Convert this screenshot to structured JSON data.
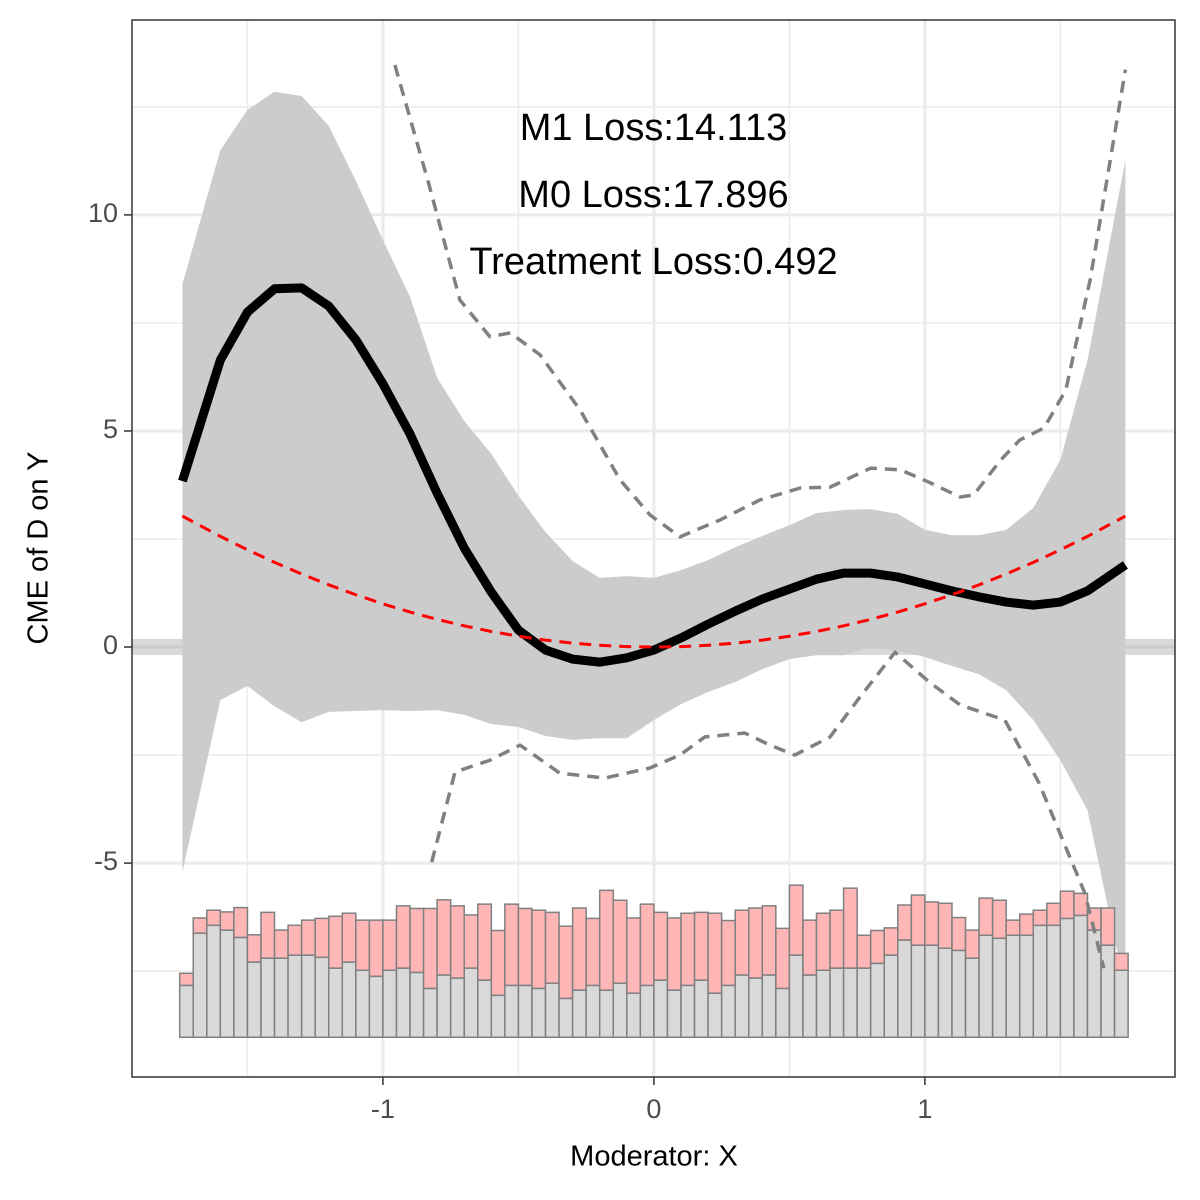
{
  "chart_data": {
    "type": "line",
    "x_label": "Moderator: X",
    "y_label": "CME of D on Y",
    "annotations": [
      "M1 Loss:14.113",
      "M0 Loss:17.896",
      "Treatment Loss:0.492"
    ],
    "xlim": [
      -1.926,
      1.923
    ],
    "ylim": [
      -9.95,
      14.51
    ],
    "xticks": [
      -1,
      0,
      1
    ],
    "yticks": [
      -5,
      0,
      5,
      10
    ],
    "grid": true,
    "minor_grid": true,
    "hline": 0,
    "x": [
      -1.74,
      -1.6,
      -1.5,
      -1.4,
      -1.3,
      -1.2,
      -1.1,
      -1.0,
      -0.9,
      -0.8,
      -0.7,
      -0.6,
      -0.5,
      -0.4,
      -0.3,
      -0.2,
      -0.1,
      0,
      0.1,
      0.2,
      0.3,
      0.4,
      0.5,
      0.6,
      0.7,
      0.8,
      0.9,
      1.0,
      1.1,
      1.2,
      1.3,
      1.4,
      1.5,
      1.6,
      1.74
    ],
    "band": {
      "color": "#cccccc",
      "upper": [
        8.4,
        11.5,
        12.43,
        12.85,
        12.75,
        12.06,
        10.79,
        9.42,
        8.1,
        6.23,
        5.23,
        4.47,
        3.5,
        2.66,
        1.99,
        1.6,
        1.64,
        1.6,
        1.78,
        2.01,
        2.31,
        2.57,
        2.82,
        3.1,
        3.17,
        3.19,
        3.08,
        2.71,
        2.59,
        2.59,
        2.71,
        3.22,
        4.33,
        6.64,
        11.27
      ],
      "lower": [
        -5.21,
        -1.23,
        -0.9,
        -1.37,
        -1.74,
        -1.5,
        -1.48,
        -1.46,
        -1.48,
        -1.46,
        -1.57,
        -1.78,
        -1.85,
        -2.06,
        -2.15,
        -2.11,
        -2.11,
        -1.69,
        -1.32,
        -1.04,
        -0.81,
        -0.51,
        -0.28,
        -0.19,
        -0.19,
        0.0,
        -0.09,
        -0.23,
        -0.44,
        -0.63,
        -1.0,
        -1.69,
        -2.62,
        -3.77,
        -7.94
      ]
    },
    "series": [
      {
        "color": "#000000",
        "dash": false,
        "values": [
          3.84,
          6.64,
          7.75,
          8.29,
          8.31,
          7.89,
          7.11,
          6.09,
          4.93,
          3.56,
          2.29,
          1.27,
          0.39,
          -0.07,
          -0.28,
          -0.35,
          -0.25,
          -0.07,
          0.21,
          0.53,
          0.83,
          1.11,
          1.34,
          1.57,
          1.71,
          1.71,
          1.62,
          1.46,
          1.3,
          1.16,
          1.04,
          0.97,
          1.04,
          1.3,
          1.9
        ]
      },
      {
        "color": "#ff0000",
        "dash": true,
        "values": [
          3.03,
          2.56,
          2.25,
          1.96,
          1.69,
          1.44,
          1.21,
          1.0,
          0.81,
          0.64,
          0.49,
          0.36,
          0.25,
          0.16,
          0.09,
          0.04,
          0.01,
          0,
          0.01,
          0.04,
          0.09,
          0.16,
          0.25,
          0.36,
          0.49,
          0.64,
          0.81,
          1.0,
          1.21,
          1.44,
          1.69,
          1.96,
          2.25,
          2.56,
          3.03
        ]
      },
      {
        "color": "#808080",
        "dash": true,
        "x": [
          -0.956,
          -0.83,
          -0.716,
          -0.605,
          -0.53,
          -0.42,
          -0.273,
          -0.125,
          -0.015,
          0.096,
          0.244,
          0.39,
          0.54,
          0.65,
          0.8,
          0.91,
          1.02,
          1.13,
          1.18,
          1.28,
          1.35,
          1.44,
          1.52,
          1.61,
          1.74
        ],
        "values": [
          13.47,
          10.7,
          8.03,
          7.18,
          7.27,
          6.76,
          5.49,
          3.87,
          3.06,
          2.55,
          2.94,
          3.4,
          3.68,
          3.7,
          4.14,
          4.1,
          3.8,
          3.47,
          3.52,
          4.33,
          4.79,
          5.07,
          5.95,
          8.5,
          13.36
        ]
      },
      {
        "color": "#808080",
        "dash": true,
        "x": [
          -0.82,
          -0.734,
          -0.605,
          -0.494,
          -0.347,
          -0.18,
          -0.015,
          0.096,
          0.188,
          0.336,
          0.428,
          0.52,
          0.65,
          0.76,
          0.89,
          1.02,
          1.13,
          1.295,
          1.42,
          1.59,
          1.66
        ],
        "values": [
          -4.98,
          -2.89,
          -2.62,
          -2.27,
          -2.92,
          -3.03,
          -2.8,
          -2.5,
          -2.08,
          -1.99,
          -2.27,
          -2.5,
          -2.08,
          -1.16,
          -0.12,
          -0.83,
          -1.34,
          -1.69,
          -3.13,
          -5.69,
          -7.43
        ]
      }
    ],
    "histogram": {
      "base": -9.03,
      "stroke": "#808080",
      "bins": [
        -1.75,
        -1.7,
        -1.65,
        -1.6,
        -1.55,
        -1.5,
        -1.45,
        -1.4,
        -1.35,
        -1.3,
        -1.25,
        -1.2,
        -1.15,
        -1.1,
        -1.05,
        -1.0,
        -0.95,
        -0.9,
        -0.85,
        -0.8,
        -0.75,
        -0.7,
        -0.65,
        -0.6,
        -0.55,
        -0.5,
        -0.45,
        -0.4,
        -0.35,
        -0.3,
        -0.25,
        -0.2,
        -0.15,
        -0.1,
        -0.05,
        0,
        0.05,
        0.1,
        0.15,
        0.2,
        0.25,
        0.3,
        0.35,
        0.4,
        0.45,
        0.5,
        0.55,
        0.6,
        0.65,
        0.7,
        0.75,
        0.8,
        0.85,
        0.9,
        0.95,
        1.0,
        1.05,
        1.1,
        1.15,
        1.2,
        1.25,
        1.3,
        1.35,
        1.4,
        1.45,
        1.5,
        1.55,
        1.6,
        1.65,
        1.7,
        1.75
      ],
      "series": [
        {
          "color": "#d9d9d9",
          "values": [
            1.2,
            2.41,
            2.59,
            2.48,
            2.31,
            1.74,
            1.83,
            1.83,
            1.9,
            1.9,
            1.85,
            1.6,
            1.74,
            1.55,
            1.41,
            1.55,
            1.6,
            1.5,
            1.13,
            1.44,
            1.37,
            1.6,
            1.32,
            0.97,
            1.2,
            1.2,
            1.13,
            1.25,
            0.9,
            1.09,
            1.2,
            1.09,
            1.25,
            1.02,
            1.2,
            1.32,
            1.09,
            1.2,
            1.32,
            1.02,
            1.2,
            1.44,
            1.37,
            1.44,
            1.13,
            1.9,
            1.44,
            1.55,
            1.6,
            1.6,
            1.6,
            1.71,
            1.9,
            2.25,
            2.13,
            2.13,
            2.06,
            2.01,
            1.83,
            2.36,
            2.29,
            2.36,
            2.36,
            2.59,
            2.59,
            2.75,
            2.82,
            2.48,
            2.13,
            1.55
          ]
        },
        {
          "color": "#ffb6b6",
          "values": [
            0.28,
            0.35,
            0.35,
            0.42,
            0.69,
            0.63,
            1.06,
            0.65,
            0.69,
            0.81,
            0.9,
            1.2,
            1.13,
            1.16,
            1.3,
            1.16,
            1.44,
            1.48,
            1.85,
            1.74,
            1.67,
            1.23,
            1.76,
            1.5,
            1.88,
            1.78,
            1.81,
            1.64,
            1.67,
            1.9,
            1.55,
            2.31,
            1.92,
            1.74,
            1.88,
            1.57,
            1.67,
            1.67,
            1.57,
            1.85,
            1.5,
            1.5,
            1.62,
            1.6,
            1.39,
            1.62,
            1.27,
            1.32,
            1.34,
            1.85,
            0.76,
            0.76,
            0.63,
            0.81,
            1.16,
            1.0,
            1.04,
            0.76,
            0.65,
            0.86,
            0.88,
            0.35,
            0.49,
            0.35,
            0.51,
            0.63,
            0.51,
            0.51,
            0.86,
            0.39
          ]
        }
      ]
    }
  }
}
